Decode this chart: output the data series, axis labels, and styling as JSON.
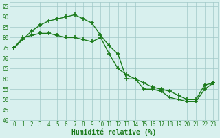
{
  "line1_x": [
    0,
    1,
    2,
    3,
    4,
    5,
    6,
    7,
    8,
    9,
    10,
    11,
    12,
    13,
    14,
    15,
    16,
    17,
    18,
    19,
    20,
    21,
    22,
    23
  ],
  "line1_y": [
    75,
    79,
    83,
    86,
    88,
    89,
    90,
    91,
    89,
    87,
    81,
    76,
    72,
    60,
    60,
    55,
    55,
    54,
    51,
    50,
    49,
    49,
    55,
    58
  ],
  "line2_x": [
    0,
    1,
    2,
    3,
    4,
    5,
    6,
    7,
    8,
    9,
    10,
    11,
    12,
    13,
    14,
    15,
    16,
    17,
    18,
    19,
    20,
    21,
    22,
    23
  ],
  "line2_y": [
    75,
    80,
    81,
    82,
    82,
    81,
    80,
    80,
    79,
    78,
    80,
    72,
    65,
    62,
    60,
    58,
    56,
    55,
    54,
    52,
    50,
    50,
    57,
    58
  ],
  "line_color": "#1a7a1a",
  "marker_color": "#1a7a1a",
  "bg_color": "#d8f0ee",
  "grid_color": "#a0c8c8",
  "xlabel": "Humidité relative (%)",
  "xlim": [
    -0.5,
    23.5
  ],
  "ylim": [
    40,
    97
  ],
  "yticks": [
    40,
    45,
    50,
    55,
    60,
    65,
    70,
    75,
    80,
    85,
    90,
    95
  ],
  "xticks": [
    0,
    1,
    2,
    3,
    4,
    5,
    6,
    7,
    8,
    9,
    10,
    11,
    12,
    13,
    14,
    15,
    16,
    17,
    18,
    19,
    20,
    21,
    22,
    23
  ],
  "marker": "+",
  "markersize": 4,
  "linewidth": 1.0,
  "xlabel_fontsize": 7,
  "tick_fontsize": 5.5
}
